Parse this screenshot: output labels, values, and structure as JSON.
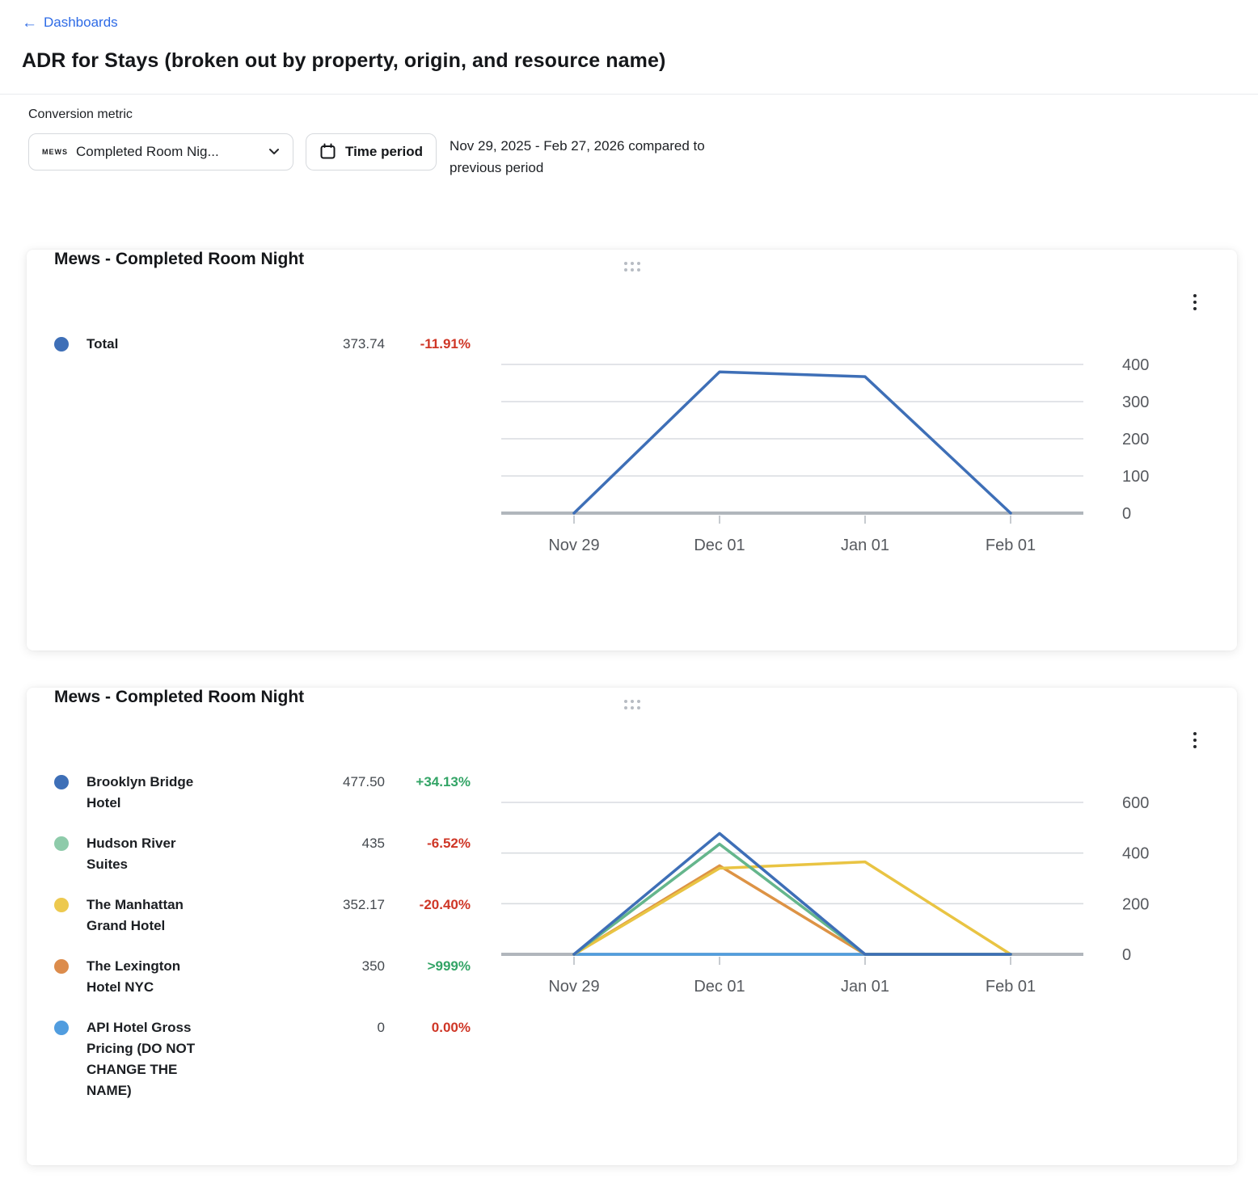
{
  "page": {
    "back_link": "Dashboards",
    "title": "ADR for Stays (broken out by property, origin, and resource name)"
  },
  "filters": {
    "label": "Conversion metric",
    "metric_dropdown": {
      "logo": "MEWS",
      "value": "Completed Room Nig..."
    },
    "time_period_button": "Time period",
    "date_range": "Nov 29, 2025 - Feb 27, 2026 compared to previous period"
  },
  "colors": {
    "link": "#2e6be6",
    "positive": "#33a466",
    "negative": "#cf3626",
    "gridline": "#d9dce0",
    "axis": "#b1b6bc",
    "axis_label": "#56595e"
  },
  "cards": [
    {
      "title": "Mews - Completed Room Night",
      "legend": [
        {
          "label": "Total",
          "dot_color": "#3e6fb7",
          "value": "373.74",
          "change": "-11.91%",
          "direction": "down"
        }
      ]
    },
    {
      "title": "Mews - Completed Room Night",
      "legend": [
        {
          "label": "Brooklyn Bridge Hotel",
          "dot_color": "#3e6fb7",
          "value": "477.50",
          "change": "+34.13%",
          "direction": "up"
        },
        {
          "label": "Hudson River Suites",
          "dot_color": "#8ecbaa",
          "value": "435",
          "change": "-6.52%",
          "direction": "down"
        },
        {
          "label": "The Manhattan Grand Hotel",
          "dot_color": "#edc94f",
          "value": "352.17",
          "change": "-20.40%",
          "direction": "down"
        },
        {
          "label": "The Lexington Hotel NYC",
          "dot_color": "#dc8c4c",
          "value": "350",
          "change": ">999%",
          "direction": "up"
        },
        {
          "label": "API Hotel Gross Pricing (DO NOT CHANGE THE NAME)",
          "dot_color": "#519ddf",
          "value": "0",
          "change": "0.00%",
          "direction": "down"
        }
      ]
    }
  ],
  "chart_data": [
    {
      "type": "line",
      "title": "Mews - Completed Room Night",
      "categories": [
        "Nov 29",
        "Dec 01",
        "Jan 01",
        "Feb 01"
      ],
      "series": [
        {
          "name": "Total",
          "color": "#3e6fb7",
          "values": [
            0,
            380,
            367,
            0
          ]
        }
      ],
      "ylim": [
        0,
        400
      ],
      "yticks": [
        0,
        100,
        200,
        300,
        400
      ],
      "grid": true,
      "y_axis_side": "right",
      "legend_position": "left"
    },
    {
      "type": "line",
      "title": "Mews - Completed Room Night",
      "categories": [
        "Nov 29",
        "Dec 01",
        "Jan 01",
        "Feb 01"
      ],
      "series": [
        {
          "name": "Brooklyn Bridge Hotel",
          "color": "#3e6fb7",
          "values": [
            0,
            477.5,
            0,
            0
          ]
        },
        {
          "name": "Hudson River Suites",
          "color": "#65b68c",
          "values": [
            0,
            435,
            0,
            0
          ]
        },
        {
          "name": "The Manhattan Grand Hotel",
          "color": "#e9c443",
          "values": [
            0,
            340,
            365,
            0
          ]
        },
        {
          "name": "The Lexington Hotel NYC",
          "color": "#dd9345",
          "values": [
            0,
            350,
            0,
            0
          ]
        },
        {
          "name": "API Hotel Gross Pricing (DO NOT CHANGE THE NAME)",
          "color": "#519ddf",
          "values": [
            0,
            0,
            0,
            0
          ]
        }
      ],
      "ylim": [
        0,
        600
      ],
      "yticks": [
        0,
        200,
        400,
        600
      ],
      "grid": true,
      "y_axis_side": "right",
      "legend_position": "left"
    }
  ]
}
